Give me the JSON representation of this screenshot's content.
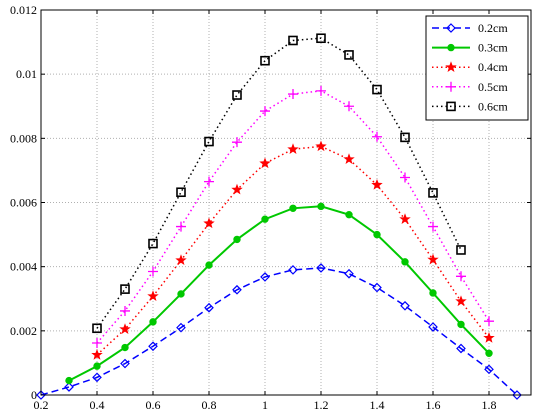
{
  "chart_data": {
    "type": "line",
    "title": "",
    "xlabel": "",
    "ylabel": "",
    "xlim": [
      0.2,
      1.95
    ],
    "ylim": [
      0,
      0.012
    ],
    "x_ticks": [
      "0.2",
      "0.4",
      "0.6",
      "0.8",
      "1",
      "1.2",
      "1.4",
      "1.6",
      "1.8"
    ],
    "y_ticks": [
      "0",
      "0.002",
      "0.004",
      "0.006",
      "0.008",
      "0.01",
      "0.012"
    ],
    "grid": true,
    "legend_position": "top-right",
    "series": [
      {
        "name": "0.2cm",
        "color": "#0000ff",
        "line_style": "dashed",
        "marker": "diamond",
        "x": [
          0.2,
          0.3,
          0.4,
          0.5,
          0.6,
          0.7,
          0.8,
          0.9,
          1.0,
          1.1,
          1.2,
          1.3,
          1.4,
          1.5,
          1.6,
          1.7,
          1.8,
          1.9
        ],
        "y": [
          0.0,
          0.00025,
          0.00055,
          0.00098,
          0.00152,
          0.0021,
          0.00272,
          0.00328,
          0.00368,
          0.0039,
          0.00396,
          0.00378,
          0.00335,
          0.00278,
          0.00212,
          0.00145,
          0.0008,
          0.0
        ]
      },
      {
        "name": "0.3cm",
        "color": "#00c800",
        "line_style": "solid",
        "marker": "filled-circle",
        "x": [
          0.3,
          0.4,
          0.5,
          0.6,
          0.7,
          0.8,
          0.9,
          1.0,
          1.1,
          1.2,
          1.3,
          1.4,
          1.5,
          1.6,
          1.7,
          1.8
        ],
        "y": [
          0.00045,
          0.0009,
          0.00148,
          0.00228,
          0.00315,
          0.00405,
          0.00485,
          0.00548,
          0.00582,
          0.00588,
          0.00562,
          0.005,
          0.00415,
          0.00318,
          0.0022,
          0.0013
        ]
      },
      {
        "name": "0.4cm",
        "color": "#ff0000",
        "line_style": "dotted",
        "marker": "star",
        "x": [
          0.4,
          0.5,
          0.6,
          0.7,
          0.8,
          0.9,
          1.0,
          1.1,
          1.2,
          1.3,
          1.4,
          1.5,
          1.6,
          1.7,
          1.8
        ],
        "y": [
          0.00125,
          0.00205,
          0.00308,
          0.0042,
          0.00535,
          0.0064,
          0.00722,
          0.00766,
          0.00775,
          0.00735,
          0.00655,
          0.00548,
          0.00422,
          0.00292,
          0.00178
        ]
      },
      {
        "name": "0.5cm",
        "color": "#ff00ff",
        "line_style": "dotted",
        "marker": "plus",
        "x": [
          0.4,
          0.5,
          0.6,
          0.7,
          0.8,
          0.9,
          1.0,
          1.1,
          1.2,
          1.3,
          1.4,
          1.5,
          1.6,
          1.7,
          1.8
        ],
        "y": [
          0.00162,
          0.00262,
          0.00385,
          0.00525,
          0.00665,
          0.00788,
          0.00885,
          0.00938,
          0.00948,
          0.009,
          0.00805,
          0.00678,
          0.00525,
          0.0037,
          0.0023
        ]
      },
      {
        "name": "0.6cm",
        "color": "#000000",
        "line_style": "dotted",
        "marker": "square",
        "x": [
          0.4,
          0.5,
          0.6,
          0.7,
          0.8,
          0.9,
          1.0,
          1.1,
          1.2,
          1.3,
          1.4,
          1.5,
          1.6,
          1.7
        ],
        "y": [
          0.00208,
          0.0033,
          0.00472,
          0.00632,
          0.0079,
          0.00935,
          0.01042,
          0.01105,
          0.01112,
          0.0106,
          0.00952,
          0.00803,
          0.0063,
          0.00452
        ]
      }
    ]
  }
}
